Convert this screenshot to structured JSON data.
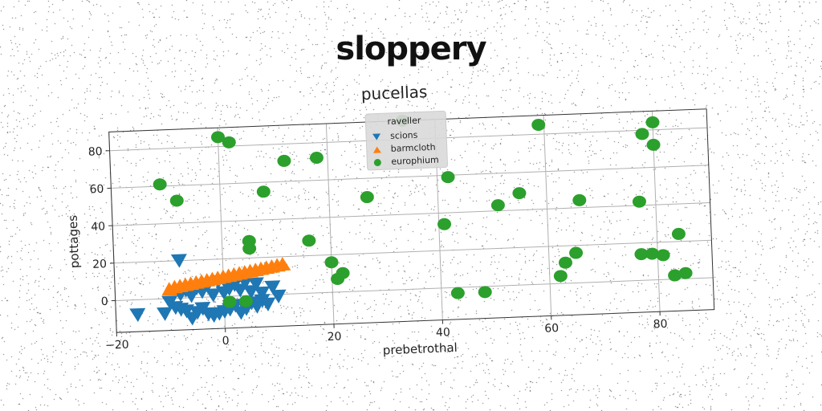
{
  "chart_data": {
    "type": "scatter",
    "suptitle": "sloppery",
    "title": "pucellas",
    "xlabel": "prebetrothal",
    "ylabel": "pottages",
    "xlim": [
      -20,
      90
    ],
    "ylim": [
      -17,
      90
    ],
    "xticks": [
      -20,
      0,
      20,
      40,
      60,
      80
    ],
    "yticks": [
      0,
      20,
      40,
      60,
      80
    ],
    "grid": true,
    "legend": {
      "title": "raveller",
      "placement": "upper-center",
      "entries": [
        "scions",
        "barmcloth",
        "europhium"
      ]
    },
    "series": [
      {
        "name": "scions",
        "marker": "triangle-down",
        "color": "#1f77b4",
        "points": [
          [
            -16,
            -8
          ],
          [
            -11,
            -8
          ],
          [
            -9,
            -5
          ],
          [
            -8,
            -6
          ],
          [
            -7,
            -7
          ],
          [
            -6,
            -11
          ],
          [
            -5,
            -8
          ],
          [
            -4,
            -6
          ],
          [
            -3,
            -9
          ],
          [
            -2,
            -10
          ],
          [
            -1,
            -9
          ],
          [
            0,
            -8
          ],
          [
            1,
            -7
          ],
          [
            2,
            -5
          ],
          [
            3,
            -9
          ],
          [
            4,
            -7
          ],
          [
            5,
            -4
          ],
          [
            6,
            -6
          ],
          [
            7,
            -3
          ],
          [
            8,
            -5
          ],
          [
            10,
            -1
          ],
          [
            -10,
            -2
          ],
          [
            -8,
            2
          ],
          [
            -6,
            1
          ],
          [
            -4,
            3
          ],
          [
            -2,
            1
          ],
          [
            0,
            2
          ],
          [
            1,
            4
          ],
          [
            3,
            3
          ],
          [
            5,
            2
          ],
          [
            7,
            1
          ],
          [
            9,
            4
          ],
          [
            6,
            6
          ],
          [
            4,
            7
          ],
          [
            2,
            6
          ],
          [
            -1,
            8
          ],
          [
            -3,
            6
          ],
          [
            -5,
            5
          ],
          [
            -7,
            4
          ],
          [
            -8,
            20
          ]
        ]
      },
      {
        "name": "barmcloth",
        "marker": "triangle-up",
        "color": "#ff7f0e",
        "points": [
          [
            -10,
            5
          ],
          [
            -9,
            6
          ],
          [
            -8,
            6.5
          ],
          [
            -7,
            7
          ],
          [
            -6,
            7.5
          ],
          [
            -5,
            8
          ],
          [
            -4,
            8.5
          ],
          [
            -3,
            9
          ],
          [
            -2,
            9.5
          ],
          [
            -1,
            10
          ],
          [
            0,
            10.5
          ],
          [
            1,
            11
          ],
          [
            2,
            11.5
          ],
          [
            3,
            12
          ],
          [
            4,
            12.5
          ],
          [
            5,
            13
          ],
          [
            6,
            13.5
          ],
          [
            7,
            14
          ],
          [
            8,
            14.5
          ],
          [
            9,
            15
          ],
          [
            10,
            15.5
          ],
          [
            11,
            16
          ]
        ]
      },
      {
        "name": "europhium",
        "marker": "circle",
        "color": "#2ca02c",
        "points": [
          [
            -11,
            61
          ],
          [
            -8,
            52
          ],
          [
            0,
            85
          ],
          [
            2,
            82
          ],
          [
            8,
            55
          ],
          [
            12,
            71
          ],
          [
            18,
            72
          ],
          [
            16,
            28
          ],
          [
            5,
            29
          ],
          [
            5,
            25
          ],
          [
            20,
            16
          ],
          [
            21,
            7
          ],
          [
            22,
            10
          ],
          [
            1,
            -3
          ],
          [
            4,
            -3
          ],
          [
            27,
            50
          ],
          [
            34,
            90
          ],
          [
            41,
            34
          ],
          [
            42,
            59
          ],
          [
            43,
            -3
          ],
          [
            48,
            -3
          ],
          [
            51,
            43
          ],
          [
            55,
            49
          ],
          [
            59,
            85
          ],
          [
            62,
            4
          ],
          [
            63,
            11
          ],
          [
            65,
            16
          ],
          [
            66,
            44
          ],
          [
            77,
            42
          ],
          [
            77,
            14
          ],
          [
            78,
            78
          ],
          [
            79,
            14
          ],
          [
            80,
            84
          ],
          [
            80,
            72
          ],
          [
            81,
            13
          ],
          [
            83,
            2
          ],
          [
            84,
            24
          ],
          [
            85,
            3
          ]
        ]
      }
    ]
  }
}
